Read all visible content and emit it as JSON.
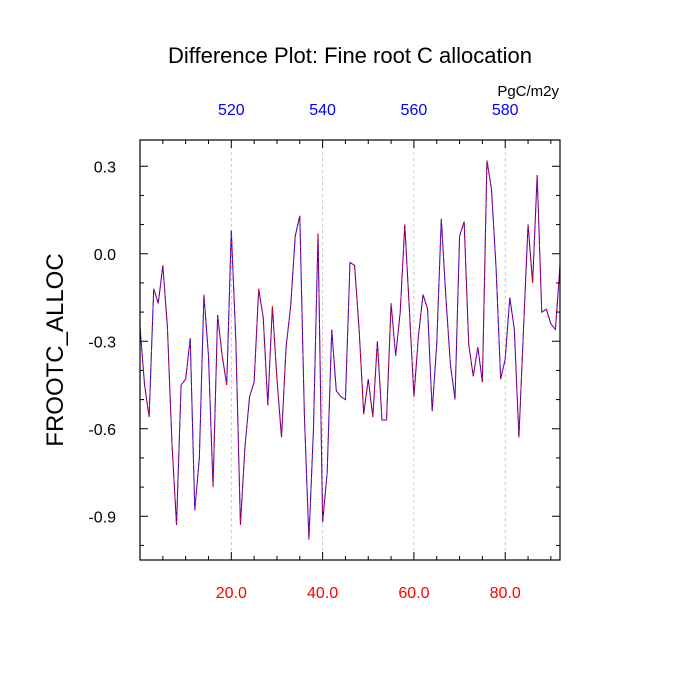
{
  "chart_data": {
    "type": "line",
    "title": "Difference Plot: Fine root C allocation",
    "ylabel": "FROOTC_ALLOC",
    "units_label": "PgC/m2y",
    "xlim": [
      0,
      92
    ],
    "ylim": [
      -1.05,
      0.39
    ],
    "x_ticks": [
      20,
      40,
      60,
      80
    ],
    "x_tick_labels": [
      "20.0",
      "40.0",
      "60.0",
      "80.0"
    ],
    "x_tick_color": "#ff0000",
    "top_tick_labels": [
      "520",
      "540",
      "560",
      "580"
    ],
    "top_tick_color": "#0000ff",
    "y_ticks": [
      0.3,
      0.0,
      -0.3,
      -0.6,
      -0.9
    ],
    "y_tick_labels": [
      "0.3",
      "0.0",
      "-0.3",
      "-0.6",
      "-0.9"
    ],
    "grid": "vertical dashed at x ticks",
    "series": [
      {
        "name": "FROOTC_ALLOC difference",
        "style": "dashed red over solid blue",
        "colors": [
          "#0000ff",
          "#ff0000"
        ],
        "x": [
          0,
          1,
          2,
          3,
          4,
          5,
          6,
          7,
          8,
          9,
          10,
          11,
          12,
          13,
          14,
          15,
          16,
          17,
          18,
          19,
          20,
          21,
          22,
          23,
          24,
          25,
          26,
          27,
          28,
          29,
          30,
          31,
          32,
          33,
          34,
          35,
          36,
          37,
          38,
          39,
          40,
          41,
          42,
          43,
          44,
          45,
          46,
          47,
          48,
          49,
          50,
          51,
          52,
          53,
          54,
          55,
          56,
          57,
          58,
          59,
          60,
          61,
          62,
          63,
          64,
          65,
          66,
          67,
          68,
          69,
          70,
          71,
          72,
          73,
          74,
          75,
          76,
          77,
          78,
          79,
          80,
          81,
          82,
          83,
          84,
          85,
          86,
          87,
          88,
          89,
          90,
          91,
          92
        ],
        "y": [
          -0.25,
          -0.45,
          -0.56,
          -0.12,
          -0.17,
          -0.04,
          -0.25,
          -0.65,
          -0.93,
          -0.45,
          -0.43,
          -0.29,
          -0.88,
          -0.7,
          -0.14,
          -0.35,
          -0.8,
          -0.21,
          -0.35,
          -0.45,
          0.08,
          -0.3,
          -0.93,
          -0.66,
          -0.49,
          -0.44,
          -0.12,
          -0.22,
          -0.52,
          -0.18,
          -0.43,
          -0.63,
          -0.32,
          -0.18,
          0.06,
          0.13,
          -0.55,
          -0.98,
          -0.6,
          0.07,
          -0.92,
          -0.75,
          -0.26,
          -0.47,
          -0.49,
          -0.5,
          -0.03,
          -0.04,
          -0.26,
          -0.55,
          -0.43,
          -0.56,
          -0.3,
          -0.57,
          -0.57,
          -0.17,
          -0.35,
          -0.2,
          0.1,
          -0.19,
          -0.49,
          -0.28,
          -0.14,
          -0.19,
          -0.54,
          -0.31,
          0.12,
          -0.15,
          -0.38,
          -0.5,
          0.06,
          0.11,
          -0.31,
          -0.42,
          -0.32,
          -0.44,
          0.32,
          0.22,
          -0.05,
          -0.43,
          -0.36,
          -0.15,
          -0.26,
          -0.63,
          -0.26,
          0.1,
          -0.1,
          0.27,
          -0.2,
          -0.19,
          -0.24,
          -0.26,
          -0.04
        ]
      }
    ]
  }
}
